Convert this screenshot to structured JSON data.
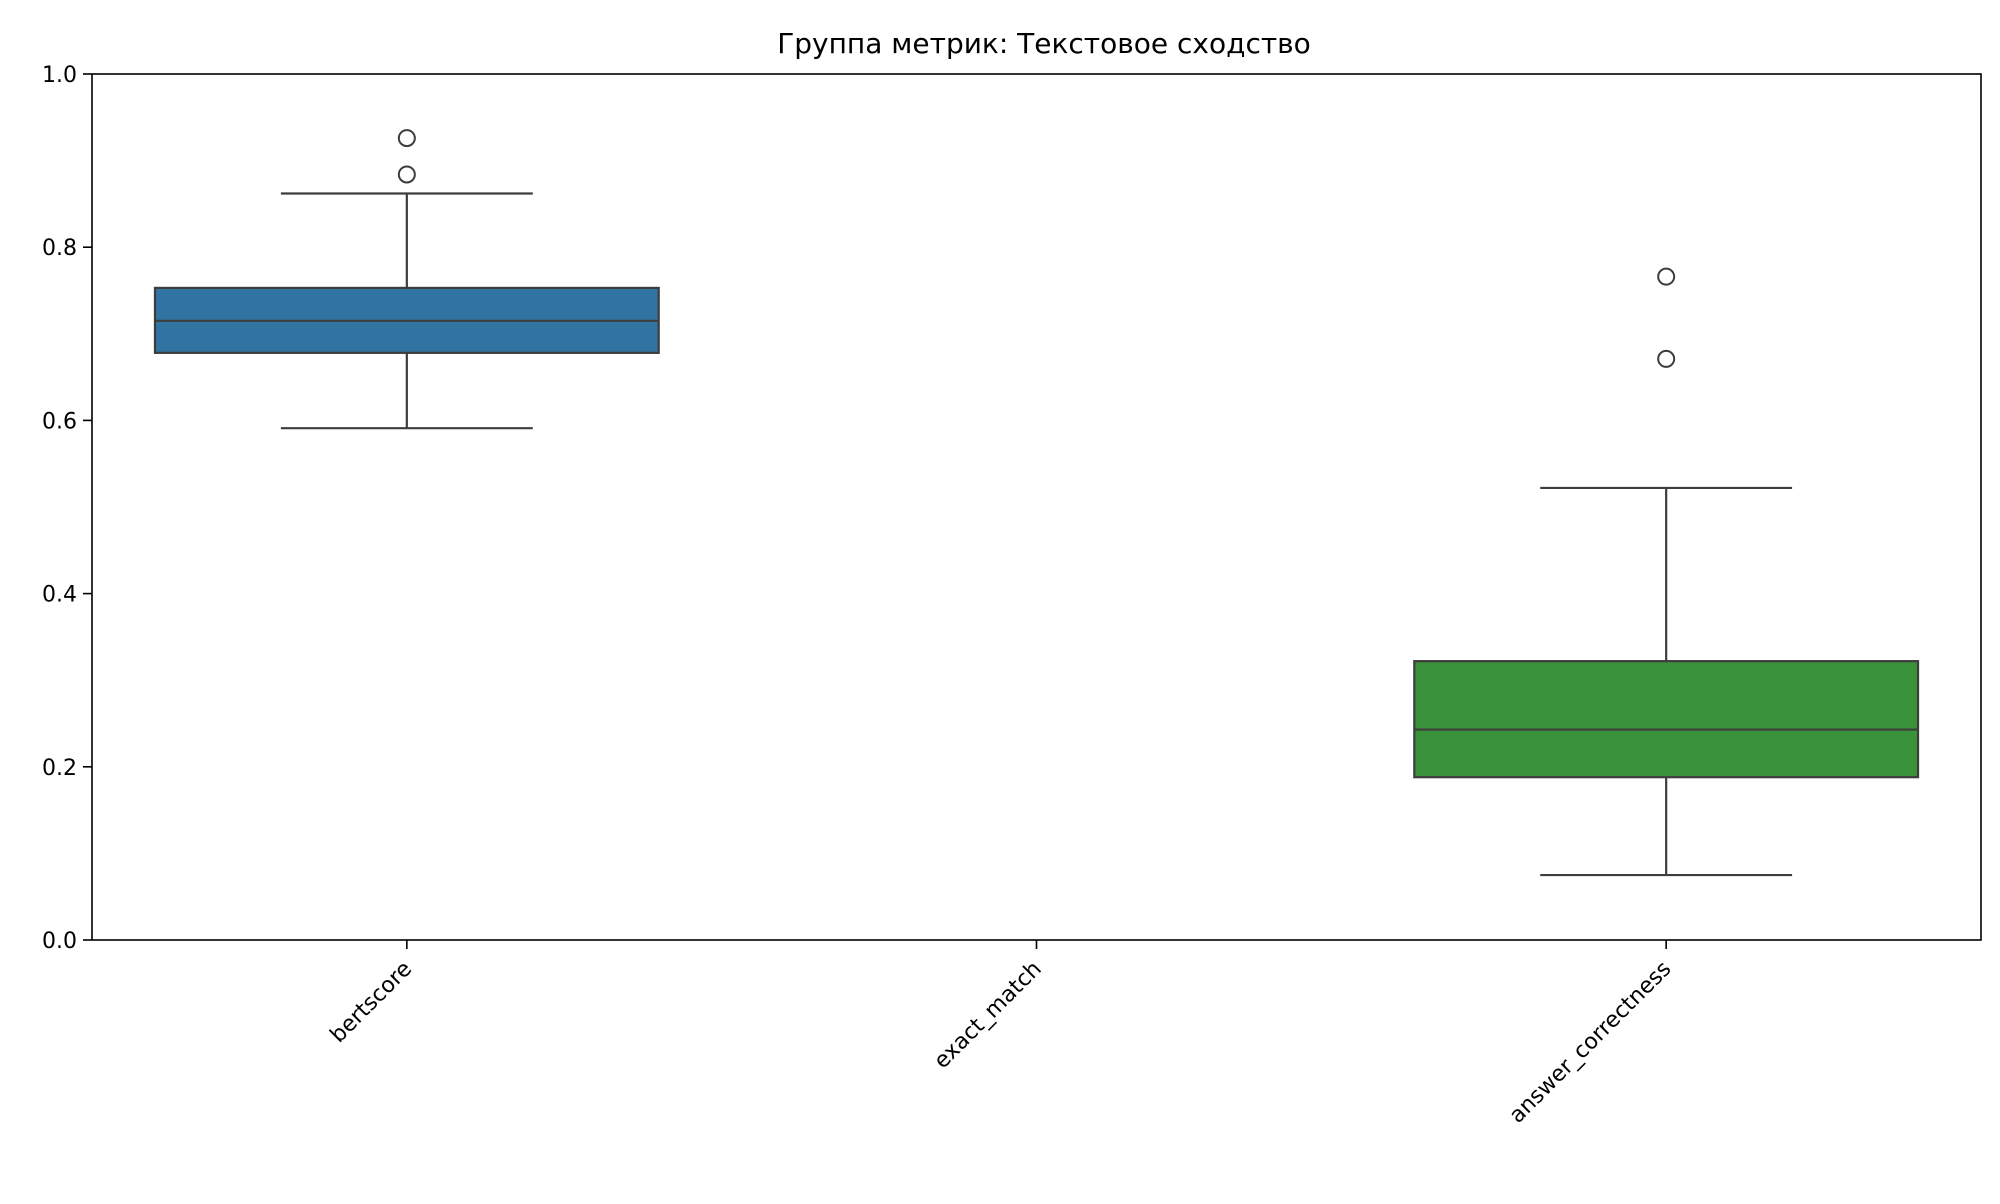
{
  "chart_data": {
    "type": "box",
    "title": "Группа метрик: Текстовое сходство",
    "xlabel": "",
    "ylabel": "",
    "ylim": [
      0.0,
      1.0
    ],
    "yticks": [
      "0.0",
      "0.2",
      "0.4",
      "0.6",
      "0.8",
      "1.0"
    ],
    "grid": false,
    "categories": [
      "bertscore",
      "exact_match",
      "answer_correctness"
    ],
    "boxes": [
      {
        "category": "bertscore",
        "color": "#3274a1",
        "whisker_low": 0.591,
        "q1": 0.678,
        "median": 0.715,
        "q3": 0.753,
        "whisker_high": 0.862,
        "outliers": [
          0.884,
          0.926
        ]
      },
      {
        "category": "exact_match",
        "color": "#e1812c",
        "whisker_low": null,
        "q1": null,
        "median": null,
        "q3": null,
        "whisker_high": null,
        "outliers": []
      },
      {
        "category": "answer_correctness",
        "color": "#3a923a",
        "whisker_low": 0.075,
        "q1": 0.188,
        "median": 0.243,
        "q3": 0.322,
        "whisker_high": 0.522,
        "outliers": [
          0.671,
          0.766
        ]
      }
    ],
    "line_color": "#3d3d3d"
  }
}
